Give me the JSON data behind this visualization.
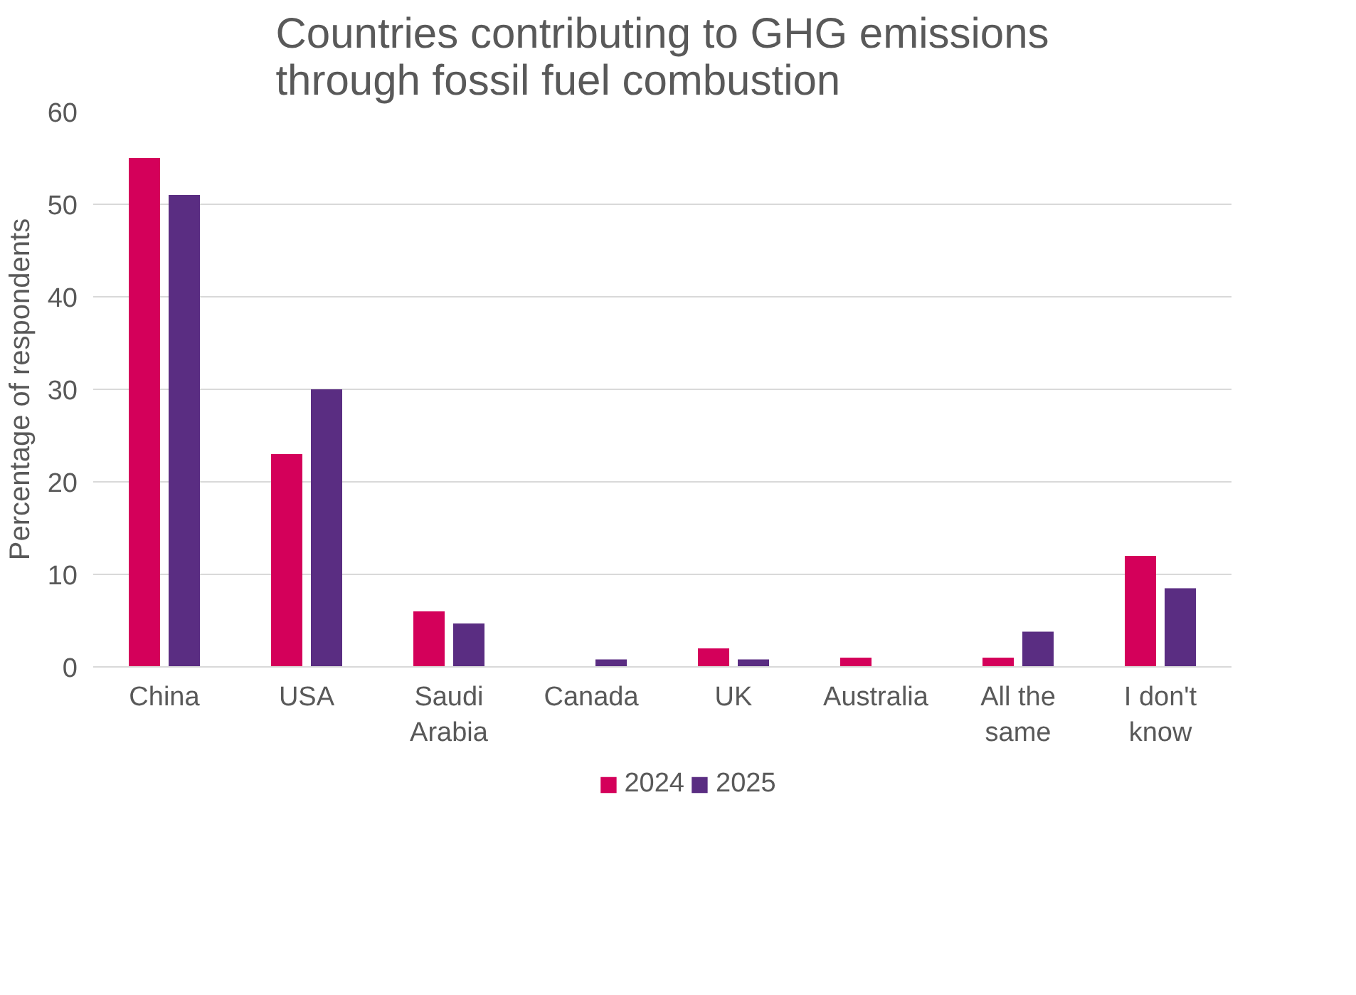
{
  "chart_data": {
    "type": "bar",
    "title": "Countries contributing to GHG emissions through fossil fuel combustion",
    "ylabel": "Percentage of respondents",
    "categories": [
      "China",
      "USA",
      "Saudi Arabia",
      "Canada",
      "UK",
      "Australia",
      "All the same",
      "I don't know"
    ],
    "series": [
      {
        "name": "2024",
        "color": "#d4005a",
        "values": [
          55,
          23,
          6,
          0,
          2,
          1,
          1,
          12
        ]
      },
      {
        "name": "2025",
        "color": "#5a2d82",
        "values": [
          51,
          30,
          4.7,
          0.8,
          0.8,
          0,
          3.8,
          8.5
        ]
      }
    ],
    "ylim": [
      0,
      60
    ],
    "yticks": [
      0,
      10,
      20,
      30,
      40,
      50,
      60
    ],
    "grid": "y",
    "legend": "bottom"
  }
}
